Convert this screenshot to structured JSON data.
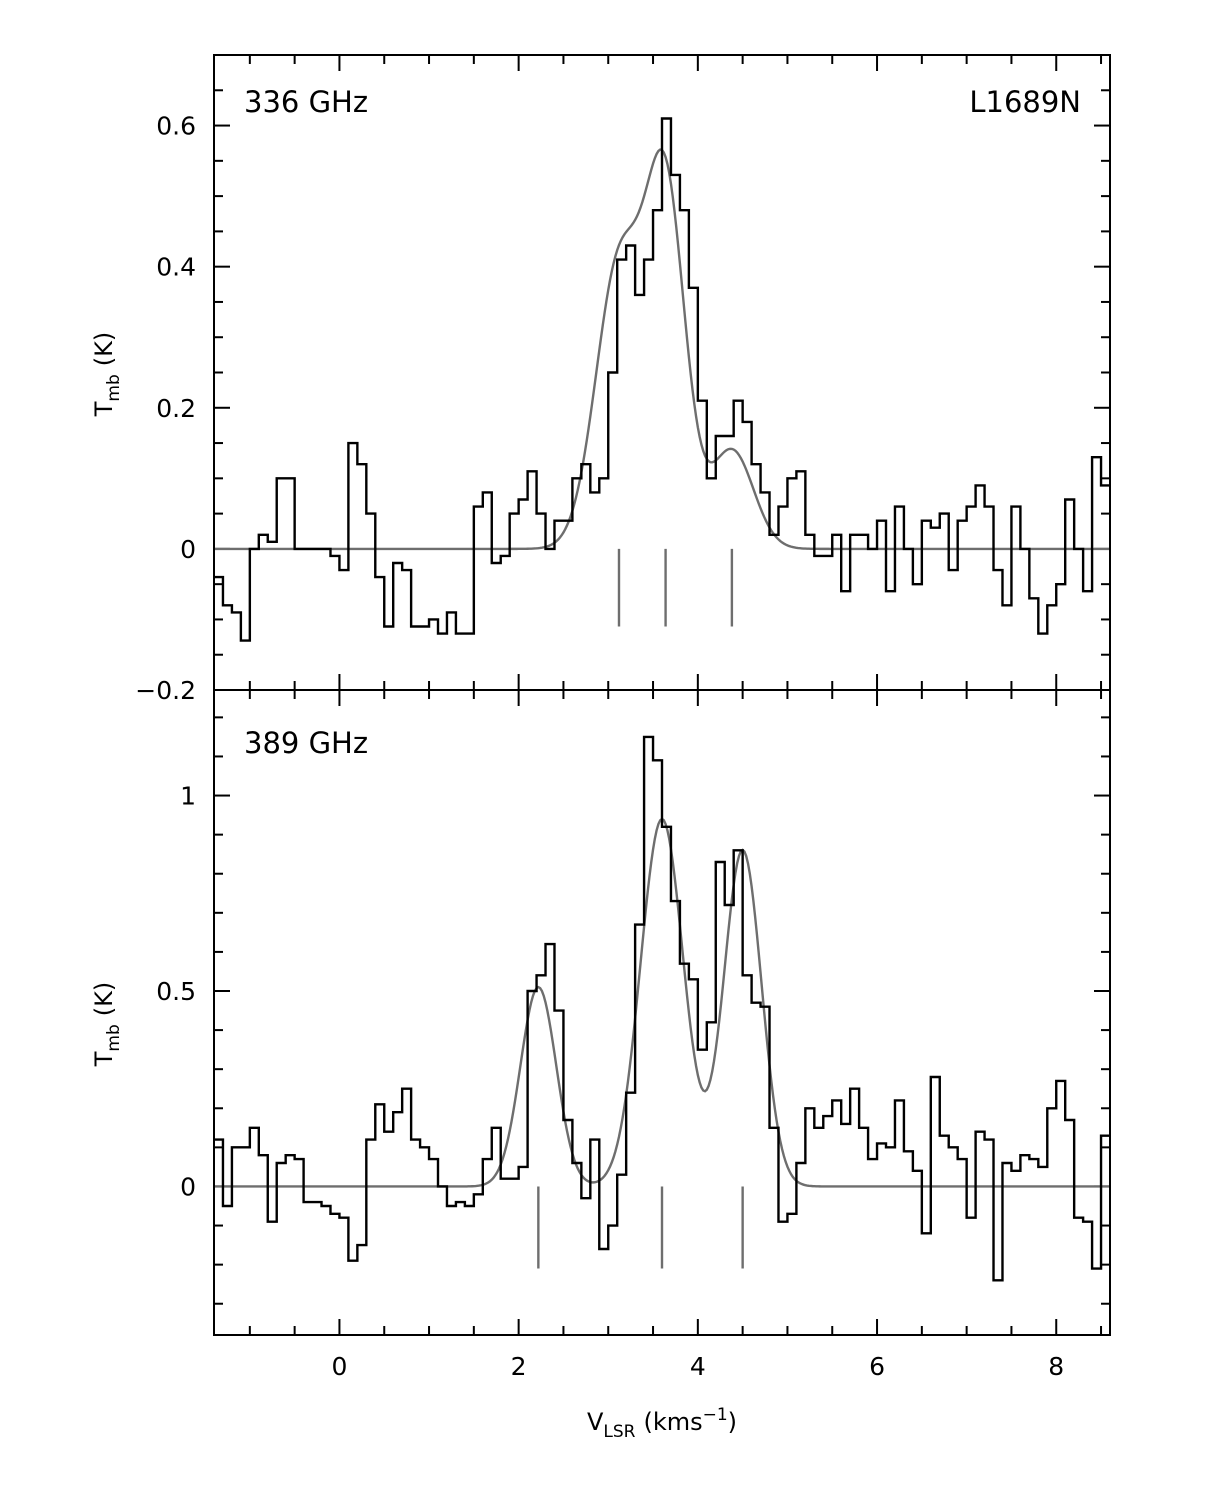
{
  "chart_data": [
    {
      "type": "line",
      "panel_label": "336 GHz",
      "source_label": "L1689N",
      "ylabel_main": "T",
      "ylabel_sub": "mb",
      "ylabel_unit": "(K)",
      "xlim": [
        -1.4,
        8.6
      ],
      "ylim": [
        -0.2,
        0.7
      ],
      "yticks": [
        -0.2,
        0,
        0.2,
        0.4,
        0.6
      ],
      "ytick_labels": [
        "−0.2",
        "0",
        "0.2",
        "0.4",
        "0.6"
      ],
      "series": [
        {
          "style": "histogram",
          "x": [
            -1.4,
            -1.3,
            -1.2,
            -1.1,
            -1.0,
            -0.9,
            -0.8,
            -0.7,
            -0.6,
            -0.5,
            -0.4,
            -0.3,
            -0.2,
            -0.1,
            0.0,
            0.1,
            0.2,
            0.3,
            0.4,
            0.5,
            0.6,
            0.7,
            0.8,
            0.9,
            1.0,
            1.1,
            1.2,
            1.3,
            1.4,
            1.5,
            1.6,
            1.7,
            1.8,
            1.9,
            2.0,
            2.1,
            2.2,
            2.3,
            2.4,
            2.5,
            2.6,
            2.7,
            2.8,
            2.9,
            3.0,
            3.1,
            3.2,
            3.3,
            3.4,
            3.5,
            3.6,
            3.7,
            3.8,
            3.9,
            4.0,
            4.1,
            4.2,
            4.3,
            4.4,
            4.5,
            4.6,
            4.7,
            4.8,
            4.9,
            5.0,
            5.1,
            5.2,
            5.3,
            5.4,
            5.5,
            5.6,
            5.7,
            5.8,
            5.9,
            6.0,
            6.1,
            6.2,
            6.3,
            6.4,
            6.5,
            6.6,
            6.7,
            6.8,
            6.9,
            7.0,
            7.1,
            7.2,
            7.3,
            7.4,
            7.5,
            7.6,
            7.7,
            7.8,
            7.9,
            8.0,
            8.1,
            8.2,
            8.3,
            8.4,
            8.5
          ],
          "y": [
            -0.04,
            -0.08,
            -0.09,
            -0.13,
            0.0,
            0.02,
            0.01,
            0.1,
            0.1,
            0.0,
            0.0,
            0.0,
            0.0,
            -0.01,
            -0.03,
            0.15,
            0.12,
            0.05,
            -0.04,
            -0.11,
            -0.02,
            -0.03,
            -0.11,
            -0.11,
            -0.1,
            -0.12,
            -0.09,
            -0.12,
            -0.12,
            0.06,
            0.08,
            -0.02,
            -0.01,
            0.05,
            0.07,
            0.11,
            0.05,
            0.0,
            0.04,
            0.04,
            0.1,
            0.12,
            0.08,
            0.1,
            0.25,
            0.41,
            0.43,
            0.36,
            0.41,
            0.48,
            0.61,
            0.53,
            0.48,
            0.37,
            0.21,
            0.1,
            0.16,
            0.16,
            0.21,
            0.18,
            0.12,
            0.08,
            0.02,
            0.06,
            0.1,
            0.11,
            0.02,
            -0.01,
            -0.01,
            0.02,
            -0.06,
            0.02,
            0.02,
            0.0,
            0.04,
            -0.06,
            0.06,
            0.0,
            -0.05,
            0.04,
            0.03,
            0.05,
            -0.03,
            0.04,
            0.06,
            0.09,
            0.06,
            -0.03,
            -0.08,
            0.06,
            0.0,
            -0.07,
            -0.12,
            -0.08,
            -0.05,
            0.07,
            0.0,
            -0.06,
            0.13,
            0.09
          ]
        },
        {
          "style": "fit",
          "components": [
            {
              "center": 3.12,
              "amp": 0.4,
              "sigma": 0.26
            },
            {
              "center": 3.64,
              "amp": 0.5,
              "sigma": 0.22
            },
            {
              "center": 4.38,
              "amp": 0.14,
              "sigma": 0.24
            }
          ]
        }
      ],
      "markers": [
        3.12,
        3.64,
        4.38
      ],
      "marker_y": [
        -0.11,
        0.0
      ]
    },
    {
      "type": "line",
      "panel_label": "389 GHz",
      "ylabel_main": "T",
      "ylabel_sub": "mb",
      "ylabel_unit": "(K)",
      "xlim": [
        -1.4,
        8.6
      ],
      "ylim": [
        -0.38,
        1.27
      ],
      "yticks": [
        0,
        0.5,
        1
      ],
      "ytick_labels": [
        "0",
        "0.5",
        "1"
      ],
      "xticks": [
        0,
        2,
        4,
        6,
        8
      ],
      "xtick_labels": [
        "0",
        "2",
        "4",
        "6",
        "8"
      ],
      "xlabel_main": "V",
      "xlabel_sub": "LSR",
      "xlabel_unit": "(kms",
      "xlabel_exp": "−1",
      "xlabel_close": ")",
      "series": [
        {
          "style": "histogram",
          "x": [
            -1.4,
            -1.3,
            -1.2,
            -1.1,
            -1.0,
            -0.9,
            -0.8,
            -0.7,
            -0.6,
            -0.5,
            -0.4,
            -0.3,
            -0.2,
            -0.1,
            0.0,
            0.1,
            0.2,
            0.3,
            0.4,
            0.5,
            0.6,
            0.7,
            0.8,
            0.9,
            1.0,
            1.1,
            1.2,
            1.3,
            1.4,
            1.5,
            1.6,
            1.7,
            1.8,
            1.9,
            2.0,
            2.1,
            2.2,
            2.3,
            2.4,
            2.5,
            2.6,
            2.7,
            2.8,
            2.9,
            3.0,
            3.1,
            3.2,
            3.3,
            3.4,
            3.5,
            3.6,
            3.7,
            3.8,
            3.9,
            4.0,
            4.1,
            4.2,
            4.3,
            4.4,
            4.5,
            4.6,
            4.7,
            4.8,
            4.9,
            5.0,
            5.1,
            5.2,
            5.3,
            5.4,
            5.5,
            5.6,
            5.7,
            5.8,
            5.9,
            6.0,
            6.1,
            6.2,
            6.3,
            6.4,
            6.5,
            6.6,
            6.7,
            6.8,
            6.9,
            7.0,
            7.1,
            7.2,
            7.3,
            7.4,
            7.5,
            7.6,
            7.7,
            7.8,
            7.9,
            8.0,
            8.1,
            8.2,
            8.3,
            8.4,
            8.5
          ],
          "y": [
            0.12,
            -0.05,
            0.1,
            0.1,
            0.15,
            0.08,
            -0.09,
            0.06,
            0.08,
            0.07,
            -0.04,
            -0.04,
            -0.05,
            -0.07,
            -0.08,
            -0.19,
            -0.15,
            0.12,
            0.21,
            0.14,
            0.19,
            0.25,
            0.12,
            0.1,
            0.07,
            0.0,
            -0.05,
            -0.04,
            -0.05,
            -0.02,
            0.07,
            0.15,
            0.02,
            0.02,
            0.05,
            0.5,
            0.54,
            0.62,
            0.45,
            0.17,
            0.06,
            -0.03,
            0.12,
            -0.16,
            -0.1,
            0.03,
            0.24,
            0.67,
            1.15,
            1.09,
            0.92,
            0.73,
            0.57,
            0.53,
            0.35,
            0.42,
            0.83,
            0.72,
            0.86,
            0.54,
            0.47,
            0.46,
            0.15,
            -0.09,
            -0.07,
            0.06,
            0.2,
            0.15,
            0.18,
            0.22,
            0.16,
            0.25,
            0.15,
            0.07,
            0.11,
            0.1,
            0.22,
            0.09,
            0.04,
            -0.12,
            0.28,
            0.13,
            0.1,
            0.07,
            -0.08,
            0.14,
            0.12,
            -0.24,
            0.06,
            0.04,
            0.08,
            0.07,
            0.05,
            0.2,
            0.27,
            0.17,
            -0.08,
            -0.09,
            -0.21,
            0.13
          ]
        },
        {
          "style": "fit",
          "components": [
            {
              "center": 2.22,
              "amp": 0.51,
              "sigma": 0.2
            },
            {
              "center": 3.6,
              "amp": 0.94,
              "sigma": 0.24
            },
            {
              "center": 4.5,
              "amp": 0.86,
              "sigma": 0.21
            }
          ]
        }
      ],
      "markers": [
        2.22,
        3.6,
        4.5
      ],
      "marker_y": [
        -0.21,
        0.0
      ]
    }
  ]
}
